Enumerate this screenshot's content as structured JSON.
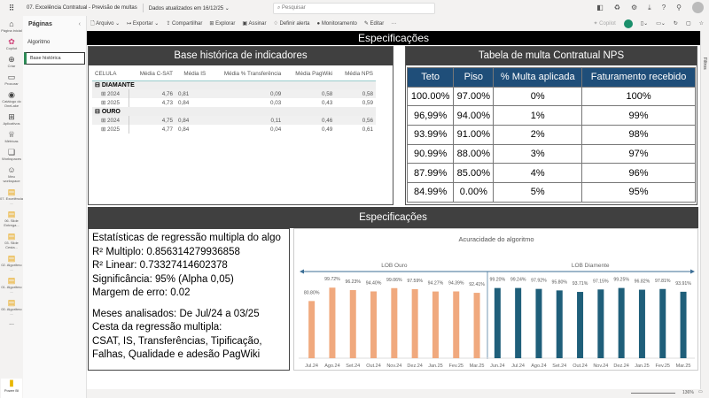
{
  "topbar": {
    "report_title": "07. Excelência Contratual - Previsão de multas",
    "updated": "Dados atualizados em 16/12/25",
    "search_placeholder": "Pesquisar"
  },
  "toolbar": {
    "arquivo": "Arquivo",
    "exportar": "Exportar",
    "compartilhar": "Compartilhar",
    "explorar": "Explorar",
    "assinar": "Assinar",
    "alerta": "Definir alerta",
    "monitoramento": "Monitoramento",
    "editar": "Editar",
    "more": "···",
    "copilot": "Copilot"
  },
  "leftnav": [
    {
      "icon": "home-icon",
      "label": "Página inicial"
    },
    {
      "icon": "copilot-icon",
      "label": "Copilot"
    },
    {
      "icon": "plus-icon",
      "label": "Criar"
    },
    {
      "icon": "folder-icon",
      "label": "Procurar"
    },
    {
      "icon": "onelake-icon",
      "label": "Catálogo do OneLake"
    },
    {
      "icon": "apps-icon",
      "label": "Aplicativos"
    },
    {
      "icon": "trophy-icon",
      "label": "Métricas"
    },
    {
      "icon": "workspaces-icon",
      "label": "Workspaces"
    },
    {
      "icon": "person-icon",
      "label": "Meu workspace"
    },
    {
      "icon": "report-icon",
      "label": "07. Excelência ..."
    },
    {
      "icon": "report-icon",
      "label": "06. Slide Entrega..."
    },
    {
      "icon": "report-icon",
      "label": "03. Slide Cesta..."
    },
    {
      "icon": "report-icon",
      "label": "02. Algoritmo ..."
    },
    {
      "icon": "report-icon",
      "label": "01. Algoritmo ..."
    },
    {
      "icon": "report-icon",
      "label": "00. Algoritmo ..."
    }
  ],
  "leftnav_more": "...",
  "powerbi_label": "Power BI",
  "pages": {
    "title": "Páginas",
    "items": [
      "Algoritmo",
      "Base histórica"
    ],
    "active": 1
  },
  "spec_title": "Especificações",
  "hist": {
    "title": "Base histórica de indicadores",
    "columns": [
      "CELULA",
      "Média C-SAT",
      "Média IS",
      "Média % Transferência",
      "Média PagWiki",
      "Média NPS"
    ],
    "groups": [
      {
        "name": "DIAMANTE",
        "rows": [
          [
            "2024",
            "4,76",
            "0,81",
            "0,09",
            "0,58",
            "0,58"
          ],
          [
            "2025",
            "4,73",
            "0,84",
            "0,03",
            "0,43",
            "0,59"
          ]
        ]
      },
      {
        "name": "OURO",
        "rows": [
          [
            "2024",
            "4,75",
            "0,84",
            "0,11",
            "0,46",
            "0,56"
          ],
          [
            "2025",
            "4,77",
            "0,84",
            "0,04",
            "0,49",
            "0,61"
          ]
        ]
      }
    ]
  },
  "nps": {
    "title": "Tabela de multa Contratual NPS",
    "columns": [
      "Teto",
      "Piso",
      "% Multa aplicada",
      "Faturamento recebido"
    ],
    "rows": [
      [
        "100.00%",
        "97.00%",
        "0%",
        "100%"
      ],
      [
        "96,99%",
        "94.00%",
        "1%",
        "99%"
      ],
      [
        "93.99%",
        "91.00%",
        "2%",
        "98%"
      ],
      [
        "90.99%",
        "88.00%",
        "3%",
        "97%"
      ],
      [
        "87.99%",
        "85.00%",
        "4%",
        "96%"
      ],
      [
        "84.99%",
        "0.00%",
        "5%",
        "95%"
      ]
    ],
    "header_color": "#1f4e79"
  },
  "spec2_title": "Especificações",
  "stats": [
    "Estatísticas de regressão multipla do algo",
    "R² Multiplo: 0.856314279936858",
    "R² Linear: 0.73327414602378",
    "Significância: 95% (Alpha 0,05)",
    "Margem de erro: 0.02",
    "",
    "Meses analisados: De Jul/24 a 03/25",
    "Cesta da regressão multipla:",
    "CSAT, IS, Transferências, Tipificação,",
    "Falhas, Qualidade e adesão PagWiki"
  ],
  "chart_data": {
    "type": "bar",
    "title": "Acuracidade do algoritmo",
    "ylim": [
      0,
      100
    ],
    "groups": [
      {
        "name": "LOB Ouro",
        "color": "#f0a97e",
        "categories": [
          "Jul.24",
          "Ago.24",
          "Set.24",
          "Out.24",
          "Nov.24",
          "Dez.24",
          "Jan.25",
          "Fev.25",
          "Mar.25"
        ],
        "values": [
          80.8,
          99.72,
          96.23,
          94.4,
          99.06,
          97.59,
          94.27,
          94.39,
          92.41
        ],
        "labels": [
          "80.80%",
          "99.72%",
          "96.23%",
          "94.40%",
          "99.06%",
          "97.59%",
          "94.27%",
          "94.39%",
          "92.41%"
        ]
      },
      {
        "name": "LOB Diamente",
        "color": "#1f5f7a",
        "categories": [
          "Jun.24",
          "Jul.24",
          "Ago.24",
          "Set.24",
          "Out.24",
          "Nov.24",
          "Dez.24",
          "Jan.25",
          "Fev.25",
          "Mar.25"
        ],
        "values": [
          99.2,
          99.24,
          97.92,
          95.8,
          93.71,
          97.15,
          99.25,
          96.82,
          97.81,
          93.91
        ],
        "labels": [
          "99.20%",
          "99.24%",
          "97.92%",
          "95.80%",
          "93.71%",
          "97.15%",
          "99.25%",
          "96.82%",
          "97.81%",
          "93.91%"
        ]
      }
    ]
  },
  "filters_label": "Filtros",
  "zoom": "136%"
}
